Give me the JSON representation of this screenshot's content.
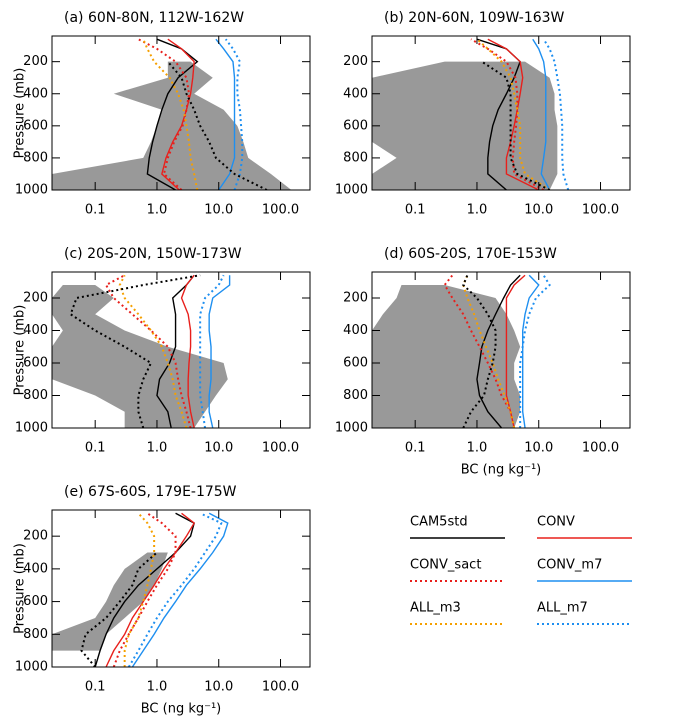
{
  "legend": [
    {
      "name": "CAM5std",
      "color": "#000000",
      "dash": false
    },
    {
      "name": "CONV",
      "color": "#e8201c",
      "dash": false
    },
    {
      "name": "CONV_sact",
      "color": "#e8201c",
      "dash": true
    },
    {
      "name": "CONV_m7",
      "color": "#1e8ff0",
      "dash": false
    },
    {
      "name": "ALL_m3",
      "color": "#f5a000",
      "dash": true
    },
    {
      "name": "ALL_m7",
      "color": "#1e8ff0",
      "dash": true
    }
  ],
  "median_color": "#000000",
  "range_color": "#999999",
  "chart_data": [
    {
      "type": "line",
      "title": "(a) 60N-80N, 112W-162W",
      "ylabel": "Pressure (mb)",
      "xlog": true,
      "xlim": [
        0.02,
        300
      ],
      "xticks": [
        0.1,
        {
          "value": 1,
          "label": "1.0"
        },
        {
          "value": 10,
          "label": "10.0"
        },
        {
          "value": 100,
          "label": "100.0"
        }
      ],
      "ylim": [
        1000,
        40
      ],
      "yticks": [
        200,
        400,
        600,
        800,
        1000
      ],
      "levels": [
        1000,
        900,
        800,
        700,
        600,
        500,
        400,
        300,
        200,
        120,
        60
      ],
      "series": [
        {
          "values": [
            2.0,
            0.7,
            0.75,
            0.85,
            1.0,
            1.2,
            1.5,
            2.2,
            4.5,
            2.5,
            1.0
          ]
        },
        {
          "values": [
            2.3,
            1.2,
            1.4,
            1.8,
            2.5,
            3.0,
            3.5,
            3.8,
            4.0,
            2.5,
            1.5
          ]
        },
        {
          "values": [
            2.5,
            1.3,
            1.5,
            1.9,
            2.6,
            3.0,
            3.3,
            3.0,
            2.0,
            1.0,
            0.5
          ]
        },
        {
          "values": [
            10,
            15,
            18,
            18,
            18,
            18,
            18,
            18,
            17,
            12,
            9
          ]
        },
        {
          "values": [
            4.5,
            4,
            3.5,
            3.3,
            3,
            2.7,
            2.2,
            1.6,
            0.9,
            0.7,
            0.6
          ]
        },
        {
          "values": [
            18,
            22,
            24,
            24,
            23,
            22,
            20,
            20,
            22,
            17,
            13
          ]
        }
      ],
      "median": [
        60,
        18,
        9,
        7,
        5,
        4,
        3,
        2.5,
        1.5,
        null,
        null
      ],
      "range": {
        "lower": [
          0.02,
          0.02,
          0.6,
          0.8,
          1.0,
          1.2,
          0.2,
          1.5,
          1.5,
          null,
          null
        ],
        "upper": [
          150,
          70,
          30,
          25,
          20,
          12,
          4,
          8,
          3.5,
          null,
          null
        ]
      }
    },
    {
      "type": "line",
      "title": "(b) 20N-60N, 109W-163W",
      "xlog": true,
      "xlim": [
        0.02,
        300
      ],
      "xticks": [
        0.1,
        {
          "value": 1,
          "label": "1.0"
        },
        {
          "value": 10,
          "label": "10.0"
        },
        {
          "value": 100,
          "label": "100.0"
        }
      ],
      "ylim": [
        1000,
        40
      ],
      "yticks": [
        200,
        400,
        600,
        800,
        1000
      ],
      "levels": [
        1000,
        900,
        800,
        700,
        600,
        500,
        400,
        300,
        200,
        120,
        60
      ],
      "series": [
        {
          "values": [
            3,
            1.5,
            1.5,
            1.6,
            1.8,
            2.2,
            3,
            4,
            5,
            3,
            1
          ]
        },
        {
          "values": [
            10,
            3,
            3,
            3.5,
            4,
            4.5,
            5,
            5.5,
            5,
            3,
            1.5
          ]
        },
        {
          "values": [
            12,
            4,
            3.8,
            4,
            4.3,
            4.5,
            4.5,
            4.2,
            3,
            1.5,
            0.8
          ]
        },
        {
          "values": [
            15,
            11,
            12,
            13,
            13,
            13,
            13,
            13,
            12,
            10,
            8
          ]
        },
        {
          "values": [
            15,
            6,
            5,
            5,
            5,
            4.5,
            4,
            3.5,
            2.5,
            1.5,
            1
          ]
        },
        {
          "values": [
            30,
            25,
            24,
            24,
            24,
            23,
            22,
            20,
            18,
            15,
            12
          ]
        }
      ],
      "median": [
        15,
        4.5,
        3.5,
        3.5,
        3.5,
        3.5,
        3.5,
        3,
        1.2,
        null,
        null
      ],
      "range": {
        "lower": [
          0.02,
          0.02,
          0.05,
          0.02,
          0.02,
          0.02,
          0.02,
          0.02,
          0.3,
          null,
          null
        ],
        "upper": [
          15,
          20,
          20,
          20,
          20,
          18,
          18,
          15,
          6,
          null,
          null
        ]
      }
    },
    {
      "type": "line",
      "title": "(c) 20S-20N, 150W-173W",
      "ylabel": "Pressure (mb)",
      "xlog": true,
      "xlim": [
        0.02,
        300
      ],
      "xticks": [
        0.1,
        {
          "value": 1,
          "label": "1.0"
        },
        {
          "value": 10,
          "label": "10.0"
        },
        {
          "value": 100,
          "label": "100.0"
        }
      ],
      "ylim": [
        1000,
        40
      ],
      "yticks": [
        200,
        400,
        600,
        800,
        1000
      ],
      "levels": [
        1000,
        900,
        800,
        700,
        600,
        500,
        400,
        300,
        200,
        120,
        60
      ],
      "series": [
        {
          "values": [
            1.7,
            1.5,
            1.0,
            1.1,
            1.6,
            2.0,
            2.0,
            2.0,
            1.8,
            3,
            4
          ]
        },
        {
          "values": [
            4,
            3.5,
            3.2,
            3.2,
            3.3,
            3.5,
            3.5,
            3.2,
            2.5,
            3,
            4
          ]
        },
        {
          "values": [
            3.5,
            3,
            2.5,
            2.2,
            2,
            1.5,
            0.8,
            0.4,
            0.2,
            0.15,
            0.3
          ]
        },
        {
          "values": [
            8,
            7,
            7,
            7.5,
            7.5,
            7.5,
            7,
            7,
            8,
            15,
            15
          ]
        },
        {
          "values": [
            3,
            2.5,
            2,
            1.8,
            1.5,
            1.2,
            0.8,
            0.5,
            0.3,
            0.25,
            0.3
          ]
        },
        {
          "values": [
            6,
            5.5,
            5,
            5,
            5,
            5,
            5,
            5,
            6,
            10,
            12
          ]
        }
      ],
      "median": [
        0.6,
        0.5,
        0.5,
        0.6,
        0.8,
        0.3,
        0.1,
        0.04,
        0.05,
        0.6,
        5
      ],
      "range": {
        "lower": [
          0.3,
          0.3,
          0.1,
          0.02,
          0.02,
          0.02,
          0.03,
          0.02,
          0.02,
          0.03,
          null
        ],
        "upper": [
          4,
          6,
          9,
          14,
          12,
          1.5,
          0.3,
          0.1,
          0.2,
          0.1,
          null
        ]
      }
    },
    {
      "type": "line",
      "title": "(d) 60S-20S, 170E-153W",
      "xlabel": "BC (ng kg⁻¹)",
      "xlog": true,
      "xlim": [
        0.02,
        300
      ],
      "xticks": [
        0.1,
        {
          "value": 1,
          "label": "1.0"
        },
        {
          "value": 10,
          "label": "10.0"
        },
        {
          "value": 100,
          "label": "100.0"
        }
      ],
      "ylim": [
        1000,
        40
      ],
      "yticks": [
        200,
        400,
        600,
        800,
        1000
      ],
      "levels": [
        1000,
        900,
        800,
        700,
        600,
        500,
        400,
        300,
        200,
        120,
        60
      ],
      "series": [
        {
          "values": [
            2.5,
            1.5,
            1.1,
            1.0,
            1.1,
            1.2,
            1.5,
            2.0,
            2.7,
            3.5,
            5
          ]
        },
        {
          "values": [
            4,
            3.5,
            3,
            3,
            3,
            3,
            3,
            3,
            3,
            4,
            6
          ]
        },
        {
          "values": [
            4,
            3.5,
            2.5,
            2,
            1.5,
            1.1,
            0.8,
            0.6,
            0.4,
            0.3,
            0.4
          ]
        },
        {
          "values": [
            6,
            5.5,
            5.5,
            5.5,
            5.5,
            5.5,
            5.5,
            6,
            7,
            10,
            7
          ]
        },
        {
          "values": [
            4,
            3.5,
            2.8,
            2.2,
            1.8,
            1.4,
            1.1,
            0.9,
            0.7,
            0.6,
            0.7
          ]
        },
        {
          "values": [
            5,
            5,
            5,
            5,
            5,
            5.5,
            6,
            7,
            9,
            15,
            12
          ]
        }
      ],
      "median": [
        0.6,
        0.8,
        1.3,
        1.5,
        1.8,
        2.0,
        2.0,
        1.5,
        1.0,
        0.6,
        0.7
      ],
      "range": {
        "lower": [
          0.02,
          0.02,
          0.02,
          0.02,
          0.02,
          0.02,
          0.02,
          0.03,
          0.05,
          0.06,
          null
        ],
        "upper": [
          4,
          5,
          5,
          4,
          4,
          5,
          4,
          3,
          2,
          0.3,
          null
        ]
      }
    },
    {
      "type": "line",
      "title": "(e) 67S-60S, 179E-175W",
      "ylabel": "Pressure (mb)",
      "xlabel": "BC (ng kg⁻¹)",
      "xlog": true,
      "xlim": [
        0.02,
        300
      ],
      "xticks": [
        0.1,
        {
          "value": 1,
          "label": "1.0"
        },
        {
          "value": 10,
          "label": "10.0"
        },
        {
          "value": 100,
          "label": "100.0"
        }
      ],
      "ylim": [
        1000,
        40
      ],
      "yticks": [
        200,
        400,
        600,
        800,
        1000
      ],
      "levels": [
        1000,
        900,
        800,
        700,
        600,
        500,
        400,
        300,
        200,
        120,
        60
      ],
      "series": [
        {
          "values": [
            0.1,
            0.12,
            0.15,
            0.2,
            0.3,
            0.5,
            1.0,
            2.0,
            3.5,
            4,
            2
          ]
        },
        {
          "values": [
            0.15,
            0.2,
            0.3,
            0.4,
            0.6,
            0.9,
            1.3,
            2.0,
            3.0,
            4,
            2.5
          ]
        },
        {
          "values": [
            0.2,
            0.25,
            0.35,
            0.5,
            0.7,
            1.0,
            1.5,
            2.0,
            2.0,
            1.2,
            0.7
          ]
        },
        {
          "values": [
            0.4,
            0.6,
            0.9,
            1.3,
            2,
            3,
            5,
            8,
            12,
            14,
            7
          ]
        },
        {
          "values": [
            0.3,
            0.3,
            0.35,
            0.5,
            0.6,
            0.7,
            0.8,
            0.9,
            0.9,
            0.7,
            0.5
          ]
        },
        {
          "values": [
            0.35,
            0.5,
            0.7,
            1.0,
            1.5,
            2.5,
            4,
            6,
            9,
            11,
            5
          ]
        }
      ],
      "median": [
        0.1,
        0.06,
        0.07,
        0.15,
        0.25,
        0.4,
        0.5,
        1.0,
        null,
        null,
        null
      ],
      "range": {
        "lower": [
          null,
          0.02,
          0.02,
          0.1,
          0.15,
          0.2,
          0.3,
          0.7,
          null,
          null,
          null
        ],
        "upper": [
          null,
          0.12,
          0.15,
          0.3,
          0.6,
          0.9,
          1.2,
          1.5,
          null,
          null,
          null
        ]
      }
    }
  ]
}
